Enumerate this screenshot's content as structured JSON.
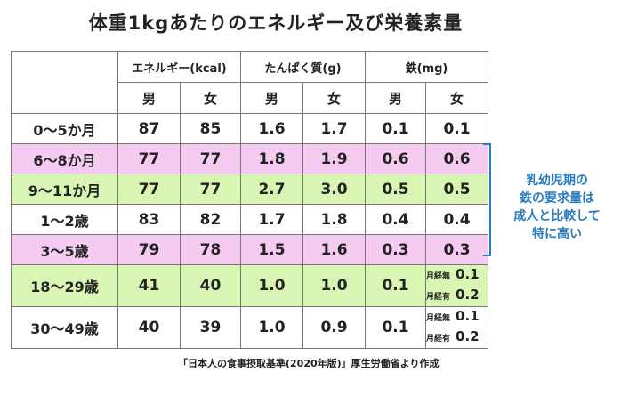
{
  "title": "体重1kgあたりのエネルギー及び栄養素量",
  "colors": {
    "pink": "#f5cbf2",
    "green": "#d9f5b3",
    "white": "#ffffff",
    "note": "#2a7bbf"
  },
  "header": {
    "energy": "エネルギー(kcal)",
    "protein": "たんぱく質(g)",
    "iron": "鉄(mg)",
    "sexes": [
      "男",
      "女",
      "男",
      "女",
      "男",
      "女"
    ]
  },
  "rows": [
    {
      "age": "0～5か月",
      "bg": "white",
      "values": [
        "87",
        "85",
        "1.6",
        "1.7",
        "0.1",
        "0.1"
      ]
    },
    {
      "age": "6～8か月",
      "bg": "pink",
      "values": [
        "77",
        "77",
        "1.8",
        "1.9",
        "0.6",
        "0.6"
      ]
    },
    {
      "age": "9～11か月",
      "bg": "green",
      "values": [
        "77",
        "77",
        "2.7",
        "3.0",
        "0.5",
        "0.5"
      ]
    },
    {
      "age": "1～2歳",
      "bg": "white",
      "values": [
        "83",
        "82",
        "1.7",
        "1.8",
        "0.4",
        "0.4"
      ]
    },
    {
      "age": "3～5歳",
      "bg": "pink",
      "values": [
        "79",
        "78",
        "1.5",
        "1.6",
        "0.3",
        "0.3"
      ]
    },
    {
      "age": "18～29歳",
      "bg": "green",
      "values": [
        "41",
        "40",
        "1.0",
        "1.0",
        "0.1"
      ],
      "iron_female": [
        {
          "label": "月経無",
          "value": "0.1"
        },
        {
          "label": "月経有",
          "value": "0.2"
        }
      ]
    },
    {
      "age": "30～49歳",
      "bg": "white",
      "values": [
        "40",
        "39",
        "1.0",
        "0.9",
        "0.1"
      ],
      "iron_female": [
        {
          "label": "月経無",
          "value": "0.1"
        },
        {
          "label": "月経有",
          "value": "0.2"
        }
      ]
    }
  ],
  "source": "「日本人の食事摂取基準(2020年版)」厚生労働省より作成",
  "note": [
    "乳幼児期の",
    "鉄の要求量は",
    "成人と比較して",
    "特に高い"
  ]
}
